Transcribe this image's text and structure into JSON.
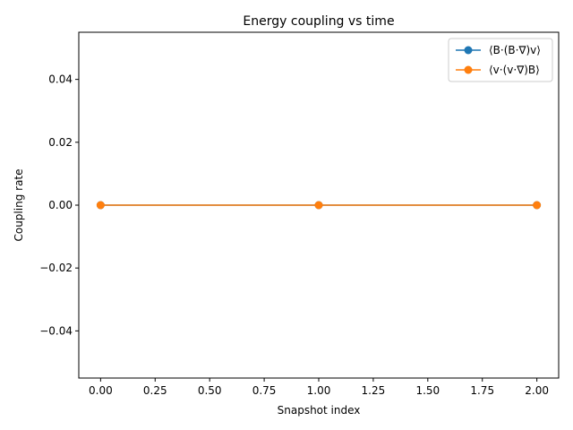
{
  "chart_data": {
    "type": "line",
    "title": "Energy coupling vs time",
    "xlabel": "Snapshot index",
    "ylabel": "Coupling rate",
    "x": [
      0,
      1,
      2
    ],
    "xlim": [
      -0.1,
      2.1
    ],
    "ylim": [
      -0.055,
      0.055
    ],
    "xticks": [
      0.0,
      0.25,
      0.5,
      0.75,
      1.0,
      1.25,
      1.5,
      1.75,
      2.0
    ],
    "xtick_labels": [
      "0.00",
      "0.25",
      "0.50",
      "0.75",
      "1.00",
      "1.25",
      "1.50",
      "1.75",
      "2.00"
    ],
    "yticks": [
      -0.04,
      -0.02,
      0.0,
      0.02,
      0.04
    ],
    "ytick_labels": [
      "−0.04",
      "−0.02",
      "0.00",
      "0.02",
      "0.04"
    ],
    "grid": false,
    "legend_position": "top-right",
    "series": [
      {
        "name": "⟨B·(B·∇)v⟩",
        "values": [
          0,
          0,
          0
        ],
        "color": "#1f77b4",
        "marker": "circle"
      },
      {
        "name": "⟨v·(v·∇)B⟩",
        "values": [
          0,
          0,
          0
        ],
        "color": "#ff7f0e",
        "marker": "circle"
      }
    ]
  }
}
